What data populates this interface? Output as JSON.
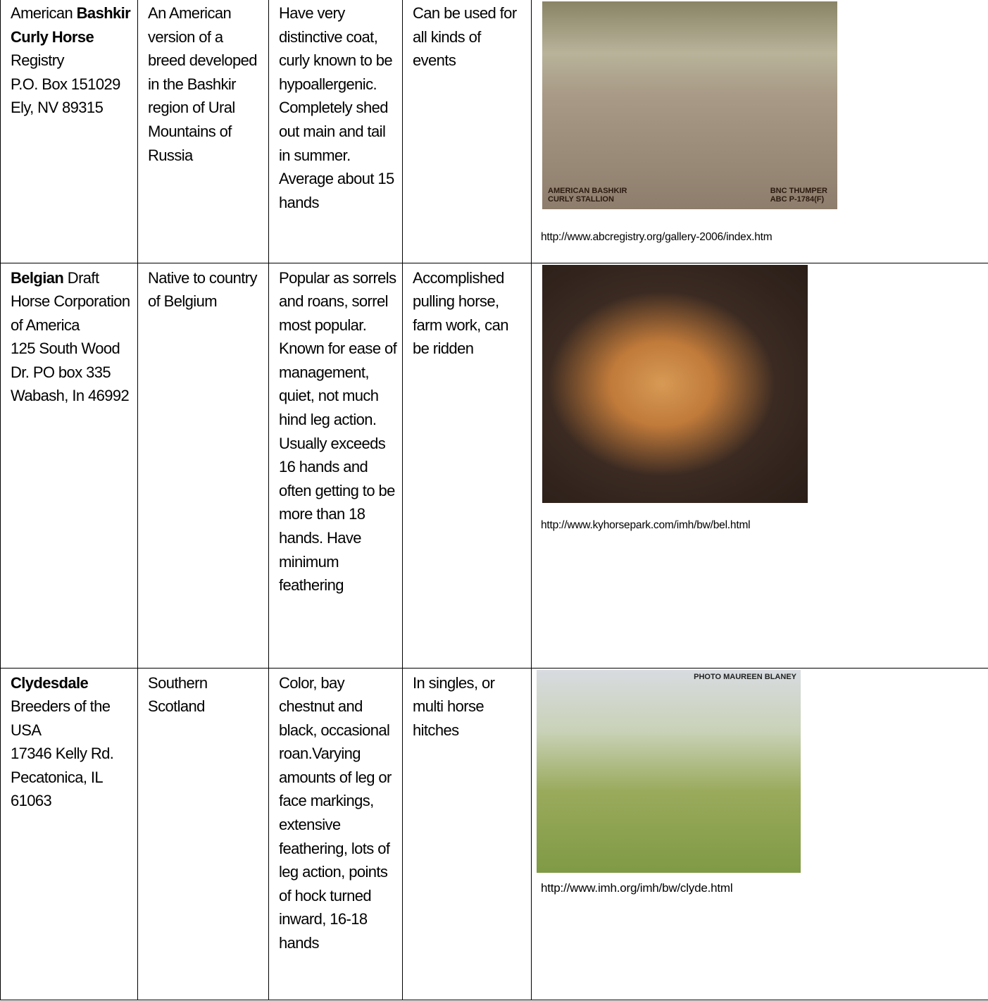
{
  "table": {
    "rows": [
      {
        "registry": [
          {
            "text": "American "
          },
          {
            "text": "Bashkir Curly Horse",
            "bold": true
          },
          {
            "text": " Registry\nP.O. Box 151029\nEly, NV 89315"
          }
        ],
        "origin": "An American version of a breed developed in the Bashkir region of Ural Mountains of Russia",
        "characteristics": "Have very distinctive coat, curly known to be hypoallergenic. Completely shed out main and tail in summer. Average about 15 hands",
        "uses": "Can be used for all kinds of events",
        "image": {
          "labels": [
            "AMERICAN BASHKIR\nCURLY STALLION",
            "BNC THUMPER\nABC P-1784(F)"
          ],
          "source": "http://www.abcregistry.org/gallery-2006/index.htm"
        }
      },
      {
        "registry": [
          {
            "text": "Belgian",
            "bold": true
          },
          {
            "text": " Draft Horse Corporation of America\n125 South Wood Dr. PO box 335\nWabash, In 46992"
          }
        ],
        "origin": "Native to country of Belgium",
        "characteristics": "Popular as sorrels and roans, sorrel most popular. Known for ease of management, quiet, not much hind leg action. Usually exceeds 16 hands and often getting to be more than 18 hands. Have minimum feathering",
        "uses": "Accomplished pulling horse, farm work, can be ridden",
        "image": {
          "labels": [],
          "source": "http://www.kyhorsepark.com/imh/bw/bel.html"
        }
      },
      {
        "registry": [
          {
            "text": "Clydesdale",
            "bold": true
          },
          {
            "text": " Breeders of the USA\n17346 Kelly Rd.\nPecatonica, IL 61063"
          }
        ],
        "origin": "Southern Scotland",
        "characteristics": "Color, bay chestnut and black, occasional roan.Varying amounts of leg or face markings, extensive feathering, lots of leg action, points of hock turned inward, 16-18 hands",
        "uses": "In singles, or multi horse hitches",
        "image": {
          "labels": [
            "PHOTO MAUREEN BLANEY"
          ],
          "source": "http://www.imh.org/imh/bw/clyde.html"
        }
      }
    ]
  }
}
